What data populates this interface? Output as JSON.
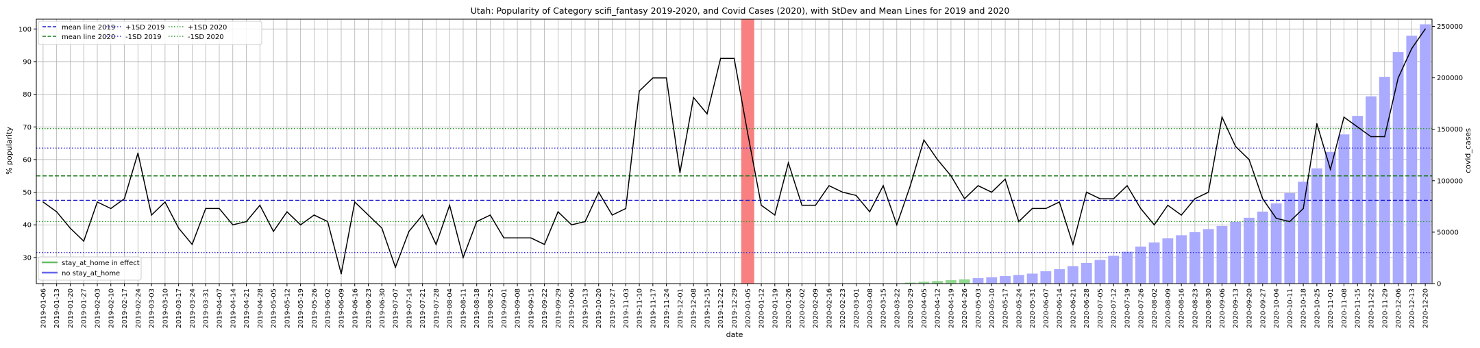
{
  "chart_data": {
    "type": "line",
    "title": "Utah: Popularity of Category scifi_fantasy 2019-2020, and Covid Cases (2020), with StDev and Mean Lines for 2019 and 2020",
    "xlabel": "date",
    "ylabel": "% popularity",
    "y2label": "covid_cases",
    "ylim": [
      22,
      103
    ],
    "y2lim": [
      0,
      257000
    ],
    "yticks": [
      30,
      40,
      50,
      60,
      70,
      80,
      90,
      100
    ],
    "y2ticks": [
      0,
      50000,
      100000,
      150000,
      200000,
      250000
    ],
    "y2tick_labels": [
      "0",
      "50000",
      "100000",
      "150000",
      "200000",
      "250000"
    ],
    "grid": true,
    "x": [
      "2019-01-06",
      "2019-01-13",
      "2019-01-20",
      "2019-01-27",
      "2019-02-03",
      "2019-02-10",
      "2019-02-17",
      "2019-02-24",
      "2019-03-03",
      "2019-03-10",
      "2019-03-17",
      "2019-03-24",
      "2019-03-31",
      "2019-04-07",
      "2019-04-14",
      "2019-04-21",
      "2019-04-28",
      "2019-05-05",
      "2019-05-12",
      "2019-05-19",
      "2019-05-26",
      "2019-06-02",
      "2019-06-09",
      "2019-06-16",
      "2019-06-23",
      "2019-06-30",
      "2019-07-07",
      "2019-07-14",
      "2019-07-21",
      "2019-07-28",
      "2019-08-04",
      "2019-08-11",
      "2019-08-18",
      "2019-08-25",
      "2019-09-01",
      "2019-09-08",
      "2019-09-15",
      "2019-09-22",
      "2019-09-29",
      "2019-10-06",
      "2019-10-13",
      "2019-10-20",
      "2019-10-27",
      "2019-11-03",
      "2019-11-10",
      "2019-11-17",
      "2019-11-24",
      "2019-12-01",
      "2019-12-08",
      "2019-12-15",
      "2019-12-22",
      "2019-12-29",
      "2020-01-05",
      "2020-01-12",
      "2020-01-19",
      "2020-01-26",
      "2020-02-02",
      "2020-02-09",
      "2020-02-16",
      "2020-02-23",
      "2020-03-01",
      "2020-03-08",
      "2020-03-15",
      "2020-03-22",
      "2020-03-29",
      "2020-04-05",
      "2020-04-12",
      "2020-04-19",
      "2020-04-26",
      "2020-05-03",
      "2020-05-10",
      "2020-05-17",
      "2020-05-24",
      "2020-05-31",
      "2020-06-07",
      "2020-06-14",
      "2020-06-21",
      "2020-06-28",
      "2020-07-05",
      "2020-07-12",
      "2020-07-19",
      "2020-07-26",
      "2020-08-02",
      "2020-08-09",
      "2020-08-16",
      "2020-08-23",
      "2020-08-30",
      "2020-09-06",
      "2020-09-13",
      "2020-09-20",
      "2020-09-27",
      "2020-10-04",
      "2020-10-11",
      "2020-10-18",
      "2020-10-25",
      "2020-11-01",
      "2020-11-08",
      "2020-11-15",
      "2020-11-22",
      "2020-11-29",
      "2020-12-06",
      "2020-12-13",
      "2020-12-20"
    ],
    "series": [
      {
        "name": "popularity",
        "color": "#000000",
        "values": [
          47,
          44,
          39,
          35,
          47,
          45,
          48,
          62,
          43,
          47,
          39,
          34,
          45,
          45,
          40,
          41,
          46,
          38,
          44,
          40,
          43,
          41,
          25,
          47,
          43,
          39,
          27,
          38,
          43,
          34,
          46,
          30,
          41,
          43,
          36,
          36,
          36,
          34,
          44,
          40,
          41,
          50,
          43,
          45,
          81,
          85,
          85,
          56,
          79,
          74,
          91,
          91,
          68,
          46,
          43,
          59,
          46,
          46,
          52,
          50,
          49,
          44,
          52,
          40,
          52,
          66,
          60,
          55,
          48,
          52,
          50,
          54,
          41,
          45,
          45,
          47,
          34,
          50,
          48,
          48,
          52,
          45,
          40,
          46,
          43,
          48,
          50,
          73,
          64,
          60,
          48,
          42,
          41,
          45,
          71,
          57,
          73,
          70,
          67,
          67,
          85,
          94,
          100
        ]
      }
    ],
    "covid_cases": [
      0,
      0,
      0,
      0,
      0,
      0,
      0,
      0,
      0,
      0,
      0,
      0,
      0,
      0,
      0,
      0,
      0,
      0,
      0,
      0,
      0,
      0,
      0,
      0,
      0,
      0,
      0,
      0,
      0,
      0,
      0,
      0,
      0,
      0,
      0,
      0,
      0,
      0,
      0,
      0,
      0,
      0,
      0,
      0,
      0,
      0,
      0,
      0,
      0,
      0,
      0,
      0,
      0,
      0,
      0,
      0,
      0,
      0,
      0,
      0,
      0,
      0,
      0,
      0,
      1000,
      1800,
      2500,
      3400,
      4200,
      5300,
      6200,
      7300,
      8400,
      9700,
      12000,
      14000,
      17000,
      20000,
      23000,
      27000,
      31000,
      36000,
      40000,
      44000,
      47000,
      50000,
      53000,
      56000,
      60000,
      64000,
      70000,
      78000,
      88000,
      99000,
      112000,
      128000,
      145000,
      163000,
      182000,
      201000,
      225000,
      241000,
      252000
    ],
    "covid_cases_bar_color_before": "#90d890",
    "covid_cases_bar_color_after": "#aaaaff",
    "red_band_date": "2020-01-05",
    "red_band_color": "#f88080",
    "hlines": [
      {
        "name": "mean line 2019",
        "value": 47.5,
        "color": "#1a1acc",
        "style": "dashed"
      },
      {
        "name": "mean line 2020",
        "value": 55,
        "color": "#1a7a1a",
        "style": "dashed"
      },
      {
        "name": "+1SD 2019",
        "value": 63.5,
        "color": "#3333dd",
        "style": "dotted"
      },
      {
        "name": "-1SD 2019",
        "value": 31.5,
        "color": "#3333dd",
        "style": "dotted"
      },
      {
        "name": "+1SD 2020",
        "value": 69.5,
        "color": "#2a9a2a",
        "style": "dotted"
      },
      {
        "name": "-1SD 2020",
        "value": 41,
        "color": "#2a9a2a",
        "style": "dotted"
      }
    ],
    "legend_top": [
      "mean line 2019",
      "mean line 2020",
      "+1SD 2019",
      "-1SD 2019",
      "+1SD 2020",
      "-1SD 2020"
    ],
    "legend_bottom": [
      {
        "label": "stay_at_home in effect",
        "color": "#66bb66"
      },
      {
        "label": "no stay_at_home",
        "color": "#6666ee"
      }
    ]
  }
}
